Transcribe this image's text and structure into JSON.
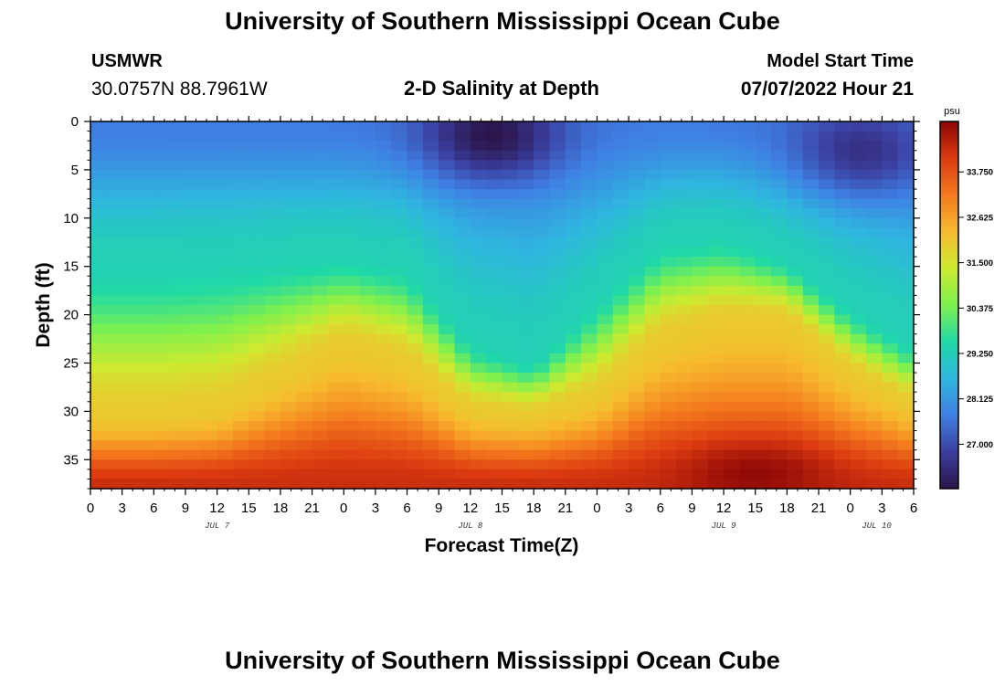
{
  "header": {
    "title": "University of Southern Mississippi Ocean Cube",
    "station": "USMWR",
    "coords": "30.0757N  88.7961W",
    "subtitle": "2-D Salinity at Depth",
    "model_start_label": "Model Start Time",
    "model_start_value": "07/07/2022 Hour 21"
  },
  "footer": {
    "title": "University of Southern Mississippi Ocean Cube"
  },
  "chart_data": {
    "type": "heatmap",
    "title": "2-D Salinity at Depth",
    "xlabel": "Forecast Time(Z)",
    "ylabel": "Depth (ft)",
    "x_hours_range": [
      0,
      78
    ],
    "ylim": [
      0,
      38
    ],
    "x_ticks": [
      "0",
      "3",
      "6",
      "9",
      "12",
      "15",
      "18",
      "21",
      "0",
      "3",
      "6",
      "9",
      "12",
      "15",
      "18",
      "21",
      "0",
      "3",
      "6",
      "9",
      "12",
      "15",
      "18",
      "21",
      "0",
      "3",
      "6"
    ],
    "date_labels": [
      {
        "hour": 12,
        "label": "JUL 7"
      },
      {
        "hour": 36,
        "label": "JUL 8"
      },
      {
        "hour": 60,
        "label": "JUL 9"
      },
      {
        "hour": 74.5,
        "label": "JUL 10"
      }
    ],
    "y_ticks": [
      0,
      5,
      10,
      15,
      20,
      25,
      30,
      35
    ],
    "colorbar": {
      "unit": "psu",
      "min": 25.9,
      "max": 35.0,
      "ticks": [
        "27.000",
        "28.125",
        "29.250",
        "30.375",
        "31.500",
        "32.625",
        "33.750"
      ],
      "colors": [
        "#2b1449",
        "#3b3fa0",
        "#3f7fe3",
        "#2fb6df",
        "#1fd9a6",
        "#7ef04e",
        "#cdea30",
        "#f7ba2e",
        "#f47a1e",
        "#db3a10",
        "#8c0606"
      ]
    },
    "surface_mixed_layer_profile": {
      "hours": [
        0,
        6,
        12,
        18,
        24,
        30,
        36,
        42,
        48,
        54,
        60,
        66,
        72,
        78
      ],
      "bottom_depth_ft": [
        14.5,
        14.5,
        14.2,
        13.8,
        13.5,
        14.5,
        22.5,
        24.8,
        18,
        12,
        11.5,
        14,
        19,
        23
      ]
    },
    "salty_water_top_depth_ft": {
      "hours": [
        0,
        6,
        12,
        18,
        24,
        30,
        36,
        42,
        48,
        54,
        60,
        66,
        72,
        78
      ],
      "depth_ft": [
        30.5,
        30.5,
        30.0,
        26.5,
        23.0,
        25.0,
        30.0,
        30.5,
        28.5,
        22.5,
        20.5,
        20.5,
        26.0,
        29.5
      ]
    },
    "fresh_core": [
      {
        "hour": 38,
        "depth_ft": 1.5,
        "salinity": 25.9
      },
      {
        "hour": 73,
        "depth_ft": 3.5,
        "salinity": 26.4
      }
    ],
    "salty_core": {
      "hour": 63,
      "depth_ft": 36,
      "salinity": 35.0
    },
    "surface_salinity": 27.7,
    "bottom_salinity": 34.3
  }
}
